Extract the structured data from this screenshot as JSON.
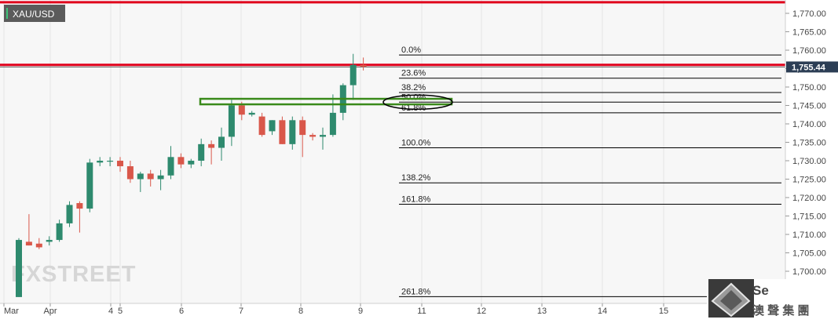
{
  "symbol": "XAU/USD",
  "watermark": "FXSTREET",
  "corner_logo": {
    "line1": "Se",
    "line2": "澳 聲 集 團"
  },
  "colors": {
    "background": "#f7f7f7",
    "up": "#2e8a6e",
    "down": "#d9574a",
    "resistance": "#e0001b",
    "zone": "#3a8a1a",
    "fib": "#000000",
    "price_label_bg": "#2c3e55",
    "symbol_badge": "#5b5b5b"
  },
  "chart_data": {
    "type": "candlestick",
    "x_tick_labels": [
      "Mar",
      "Apr",
      "4",
      "5",
      "6",
      "7",
      "8",
      "9",
      "11",
      "12",
      "13",
      "14",
      "15"
    ],
    "ylim": [
      1697,
      1773
    ],
    "y_ticks": [
      1700,
      1705,
      1710,
      1715,
      1720,
      1725,
      1730,
      1735,
      1740,
      1745,
      1750,
      1755,
      1760,
      1765,
      1770
    ],
    "y_tick_labels": [
      "1,700.00",
      "1,705.00",
      "1,710.00",
      "1,715.00",
      "1,720.00",
      "1,725.00",
      "1,730.00",
      "1,735.00",
      "1,740.00",
      "1,745.00",
      "1,750.00",
      "1,755.00",
      "1,760.00",
      "1,765.00",
      "1,770.00"
    ],
    "current_price": 1755.44,
    "current_price_label": "1,755.44",
    "resistance_levels": [
      1773.0,
      1756.0
    ],
    "zone": {
      "low": 1745.3,
      "high": 1746.8
    },
    "fib_levels": [
      {
        "label": "0.0%",
        "value": 1758.7
      },
      {
        "label": "23.6%",
        "value": 1752.4
      },
      {
        "label": "38.2%",
        "value": 1748.5
      },
      {
        "label": "50.0%",
        "value": 1745.9
      },
      {
        "label": "61.8%",
        "value": 1743.0
      },
      {
        "label": "100.0%",
        "value": 1733.5
      },
      {
        "label": "138.2%",
        "value": 1724.0
      },
      {
        "label": "161.8%",
        "value": 1718.2
      },
      {
        "label": "261.8%",
        "value": 1693.1
      }
    ],
    "candles": [
      {
        "o": 1693,
        "h": 1709,
        "l": 1693,
        "c": 1708.5
      },
      {
        "o": 1708,
        "h": 1715.5,
        "l": 1707,
        "c": 1707
      },
      {
        "o": 1707.5,
        "h": 1709,
        "l": 1706,
        "c": 1706.5
      },
      {
        "o": 1708,
        "h": 1709.5,
        "l": 1707,
        "c": 1708.5
      },
      {
        "o": 1708.5,
        "h": 1714,
        "l": 1708,
        "c": 1713
      },
      {
        "o": 1713,
        "h": 1719,
        "l": 1712,
        "c": 1718
      },
      {
        "o": 1718.5,
        "h": 1719,
        "l": 1710.5,
        "c": 1717
      },
      {
        "o": 1717,
        "h": 1730.5,
        "l": 1716,
        "c": 1729.5
      },
      {
        "o": 1729.5,
        "h": 1731,
        "l": 1728.5,
        "c": 1730
      },
      {
        "o": 1730,
        "h": 1731,
        "l": 1728.5,
        "c": 1730
      },
      {
        "o": 1730,
        "h": 1731,
        "l": 1727,
        "c": 1728.5
      },
      {
        "o": 1728.5,
        "h": 1730,
        "l": 1724,
        "c": 1725
      },
      {
        "o": 1725,
        "h": 1727,
        "l": 1721.5,
        "c": 1726.5
      },
      {
        "o": 1726.5,
        "h": 1727.5,
        "l": 1723,
        "c": 1725
      },
      {
        "o": 1725,
        "h": 1727.5,
        "l": 1722,
        "c": 1726
      },
      {
        "o": 1726,
        "h": 1734,
        "l": 1725,
        "c": 1731
      },
      {
        "o": 1731,
        "h": 1732,
        "l": 1728,
        "c": 1729
      },
      {
        "o": 1729,
        "h": 1730.5,
        "l": 1728,
        "c": 1730
      },
      {
        "o": 1730,
        "h": 1736,
        "l": 1728.5,
        "c": 1734.5
      },
      {
        "o": 1734.5,
        "h": 1735.5,
        "l": 1729,
        "c": 1733.5
      },
      {
        "o": 1733.5,
        "h": 1739,
        "l": 1730,
        "c": 1736.5
      },
      {
        "o": 1736.5,
        "h": 1746.5,
        "l": 1734,
        "c": 1745
      },
      {
        "o": 1745,
        "h": 1746,
        "l": 1741,
        "c": 1742.5
      },
      {
        "o": 1742.5,
        "h": 1743.5,
        "l": 1742,
        "c": 1743
      },
      {
        "o": 1742,
        "h": 1743,
        "l": 1736.5,
        "c": 1737
      },
      {
        "o": 1738,
        "h": 1741,
        "l": 1737,
        "c": 1741
      },
      {
        "o": 1741,
        "h": 1742,
        "l": 1734.5,
        "c": 1734.5
      },
      {
        "o": 1734.5,
        "h": 1742,
        "l": 1733,
        "c": 1741
      },
      {
        "o": 1741,
        "h": 1742,
        "l": 1731,
        "c": 1737
      },
      {
        "o": 1737,
        "h": 1737.5,
        "l": 1735.5,
        "c": 1736.5
      },
      {
        "o": 1736.5,
        "h": 1739,
        "l": 1733,
        "c": 1737
      },
      {
        "o": 1737,
        "h": 1748,
        "l": 1736.5,
        "c": 1743
      },
      {
        "o": 1743,
        "h": 1751,
        "l": 1741,
        "c": 1750.5
      },
      {
        "o": 1750.5,
        "h": 1759,
        "l": 1746.5,
        "c": 1756
      },
      {
        "o": 1756,
        "h": 1758,
        "l": 1754.5,
        "c": 1755.5
      }
    ]
  }
}
